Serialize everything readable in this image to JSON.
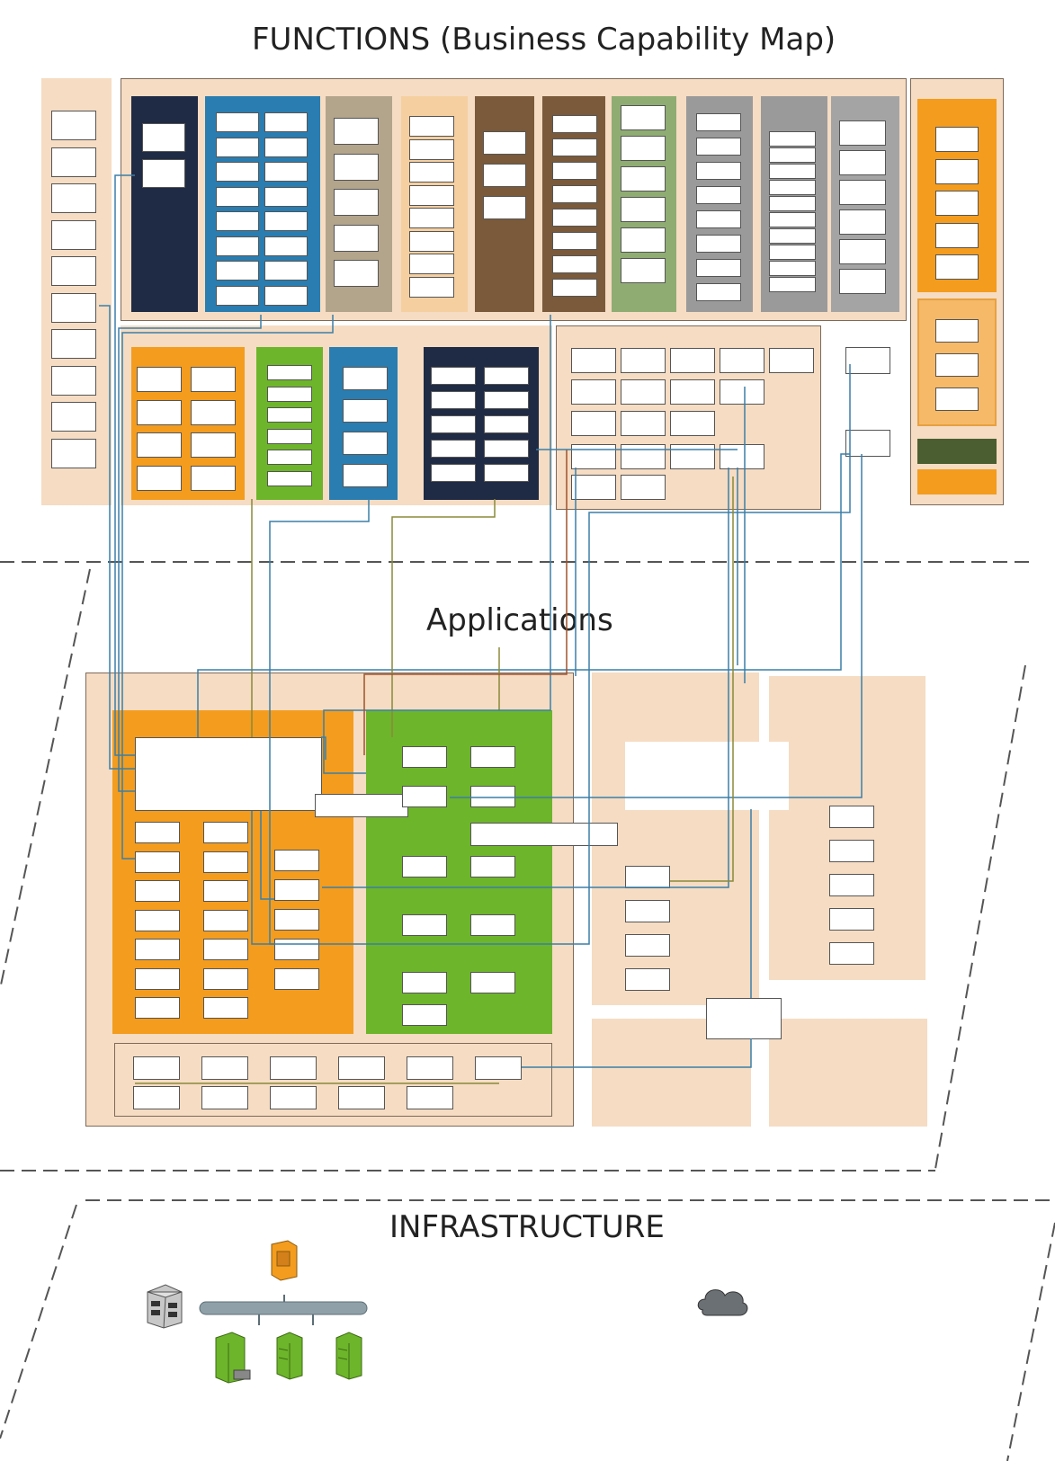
{
  "titles": {
    "functions": "FUNCTIONS (Business Capability Map)",
    "applications": "Applications",
    "infrastructure": "INFRASTRUCTURE"
  },
  "colors": {
    "panel_beige": "#f5dcc3",
    "navy": "#1f2a44",
    "blue": "#2a7db0",
    "taupe": "#b3a58c",
    "peach": "#f5cfa0",
    "brown": "#7a5a3a",
    "sage": "#8fac73",
    "gray": "#9a9a9a",
    "orange": "#f39c1e",
    "green": "#6db52a",
    "dark_olive": "#4a5e32",
    "line_blue": "#3b7fa8",
    "line_olive": "#8a8a3a",
    "line_brown": "#a0522d"
  },
  "icons": [
    "server-rack-icon",
    "network-bus-icon",
    "firewall-icon",
    "server-icon",
    "cloud-icon"
  ]
}
